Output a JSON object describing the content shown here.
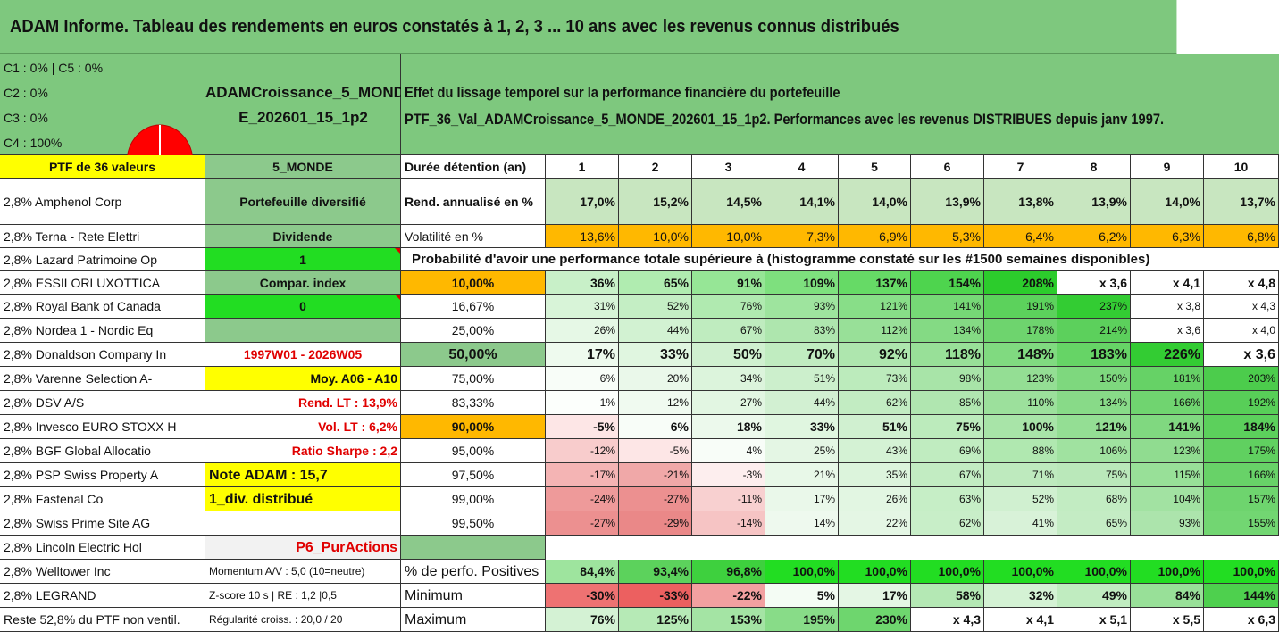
{
  "title": "ADAM Informe. Tableau des rendements en euros constatés à 1, 2, 3 ... 10 ans avec les revenus connus distribués",
  "info_lines": [
    "C1 : 0% | C5 : 0%",
    "C2 : 0%",
    "C3 : 0%",
    "C4 : 100%"
  ],
  "pie": {
    "color": "#ff0000",
    "share_c4": 1.0
  },
  "portfolio_name_lines": [
    "ADAMCroissance_5_MOND",
    "E_202601_15_1p2"
  ],
  "description_lines": [
    "Effet du lissage temporel sur la performance financière du portefeuille",
    "PTF_36_Val_ADAMCroissance_5_MONDE_202601_15_1p2. Performances avec les revenus DISTRIBUES depuis janv 1997."
  ],
  "header_row": {
    "ptf_label": "PTF de 36 valeurs",
    "zone": "5_MONDE",
    "duration_label": "Durée détention (an)",
    "years": [
      "1",
      "2",
      "3",
      "4",
      "5",
      "6",
      "7",
      "8",
      "9",
      "10"
    ]
  },
  "holdings": [
    "2,8% Amphenol Corp",
    "2,8% Terna - Rete Elettri",
    "2,8% Lazard Patrimoine Op",
    "2,8% ESSILORLUXOTTICA",
    "2,8% Royal Bank of Canada",
    "2,8% Nordea 1 - Nordic Eq",
    "2,8% Donaldson Company In",
    "2,8% Varenne Selection A-",
    "2,8% DSV A/S",
    "2,8% Invesco EURO STOXX H",
    "2,8% BGF Global Allocatio",
    "2,8% PSP Swiss Property A",
    "2,8% Fastenal Co",
    "2,8% Swiss Prime Site AG",
    "2,8% Lincoln Electric Hol",
    "2,8% Welltower Inc",
    "2,8% LEGRAND",
    "Reste 52,8% du PTF non ventil."
  ],
  "side_info": [
    "Portefeuille diversifié",
    "Dividende",
    "1",
    "Compar. index",
    "0",
    "",
    "1997W01 - 2026W05",
    "Moy. A06 - A10",
    "Rend. LT : 13,9%",
    "Vol. LT : 6,2%",
    "Ratio Sharpe : 2,2",
    "Note ADAM : 15,7",
    "1_div. distribué",
    "",
    "P6_PurActions",
    "Momentum A/V : 5,0 (10=neutre)",
    "Z-score 10 s | RE : 1,2 |0,5",
    "Régularité croiss. : 20,0 / 20"
  ],
  "rend": {
    "label": "Rend. annualisé en %",
    "values": [
      "17,0%",
      "15,2%",
      "14,5%",
      "14,1%",
      "14,0%",
      "13,9%",
      "13,8%",
      "13,9%",
      "14,0%",
      "13,7%"
    ]
  },
  "vol": {
    "label": "Volatilité en %",
    "values": [
      "13,6%",
      "10,0%",
      "10,0%",
      "7,3%",
      "6,9%",
      "5,3%",
      "6,4%",
      "6,2%",
      "6,3%",
      "6,8%"
    ]
  },
  "prob_title": "Probabilité d'avoir une performance totale supérieure à (histogramme constaté sur les #1500 semaines disponibles)",
  "quantiles": [
    {
      "label": "10,00%",
      "values": [
        "36%",
        "65%",
        "91%",
        "109%",
        "137%",
        "154%",
        "208%",
        "x 3,6",
        "x 4,1",
        "x 4,8"
      ],
      "colors": [
        "#c8f0c8",
        "#b0ecb0",
        "#96e696",
        "#7ee07e",
        "#66da66",
        "#4ed44e",
        "#2ccc2c",
        "#ffffff",
        "#ffffff",
        "#ffffff"
      ]
    },
    {
      "label": "16,67%",
      "values": [
        "31%",
        "52%",
        "76%",
        "93%",
        "121%",
        "141%",
        "191%",
        "237%",
        "x 3,8",
        "x 4,3"
      ],
      "colors": [
        "#d8f4d8",
        "#c4eec4",
        "#b0eab0",
        "#9ee49e",
        "#88de88",
        "#76d876",
        "#5cd25c",
        "#33cc33",
        "#ffffff",
        "#ffffff"
      ]
    },
    {
      "label": "25,00%",
      "values": [
        "26%",
        "44%",
        "67%",
        "83%",
        "112%",
        "134%",
        "178%",
        "214%",
        "x 3,6",
        "x 4,0"
      ],
      "colors": [
        "#e6f8e6",
        "#d2f2d2",
        "#bfecbf",
        "#aee6ae",
        "#98e098",
        "#84da84",
        "#6ed46e",
        "#5cd05c",
        "#ffffff",
        "#ffffff"
      ]
    },
    {
      "label": "50,00%",
      "values": [
        "17%",
        "33%",
        "50%",
        "70%",
        "92%",
        "118%",
        "148%",
        "183%",
        "226%",
        "x 3,6"
      ],
      "colors": [
        "#eefaee",
        "#e0f6e0",
        "#d0f0d0",
        "#c0ecc0",
        "#aee6ae",
        "#98e098",
        "#80da80",
        "#66d466",
        "#33cc33",
        "#ffffff"
      ]
    },
    {
      "label": "75,00%",
      "values": [
        "6%",
        "20%",
        "34%",
        "51%",
        "73%",
        "98%",
        "123%",
        "150%",
        "181%",
        "203%"
      ],
      "colors": [
        "#f8fdf8",
        "#eaf8ea",
        "#dcf4dc",
        "#ccefcc",
        "#bcebbc",
        "#a8e4a8",
        "#94de94",
        "#7ed87e",
        "#66d266",
        "#4ccc4c"
      ]
    },
    {
      "label": "83,33%",
      "values": [
        "1%",
        "12%",
        "27%",
        "44%",
        "62%",
        "85%",
        "110%",
        "134%",
        "166%",
        "192%"
      ],
      "colors": [
        "#fcfffc",
        "#f0faf0",
        "#e2f6e2",
        "#d2f0d2",
        "#c2ecc2",
        "#b0e6b0",
        "#9ce09c",
        "#88da88",
        "#70d470",
        "#58ce58"
      ]
    },
    {
      "label": "90,00%",
      "values": [
        "-5%",
        "6%",
        "18%",
        "33%",
        "51%",
        "75%",
        "100%",
        "121%",
        "141%",
        "184%"
      ],
      "colors": [
        "#fde6e6",
        "#f8fdf8",
        "#ecf9ec",
        "#e0f6e0",
        "#d0f0d0",
        "#bcebbc",
        "#a8e4a8",
        "#94de94",
        "#80d880",
        "#5cd05c"
      ]
    },
    {
      "label": "95,00%",
      "values": [
        "-12%",
        "-5%",
        "4%",
        "25%",
        "43%",
        "69%",
        "88%",
        "106%",
        "123%",
        "175%"
      ],
      "colors": [
        "#f8cccc",
        "#fde6e6",
        "#f8fdf8",
        "#e4f6e4",
        "#d4f2d4",
        "#c0ecc0",
        "#b0e8b0",
        "#a0e2a0",
        "#90dc90",
        "#60d060"
      ]
    },
    {
      "label": "97,50%",
      "values": [
        "-17%",
        "-21%",
        "-3%",
        "21%",
        "35%",
        "67%",
        "71%",
        "75%",
        "115%",
        "166%"
      ],
      "colors": [
        "#f4b4b4",
        "#f0a8a8",
        "#fdeeee",
        "#e8f8e8",
        "#dcf4dc",
        "#c2ecc2",
        "#beeabe",
        "#bae8ba",
        "#98e098",
        "#68d268"
      ]
    },
    {
      "label": "99,00%",
      "values": [
        "-24%",
        "-27%",
        "-11%",
        "17%",
        "26%",
        "63%",
        "52%",
        "68%",
        "104%",
        "157%"
      ],
      "colors": [
        "#ee9a9a",
        "#ec9090",
        "#f8d0d0",
        "#eaf8ea",
        "#e2f6e2",
        "#c6eec6",
        "#d0f0d0",
        "#c2ecc2",
        "#a2e2a2",
        "#6ed46e"
      ]
    },
    {
      "label": "99,50%",
      "values": [
        "-27%",
        "-29%",
        "-14%",
        "14%",
        "22%",
        "62%",
        "41%",
        "65%",
        "93%",
        "155%"
      ],
      "colors": [
        "#ec9090",
        "#ea8888",
        "#f6c4c4",
        "#eef9ee",
        "#e4f6e4",
        "#c8eec8",
        "#d8f2d8",
        "#c4ecc4",
        "#acE4ac",
        "#72d672"
      ]
    }
  ],
  "bottom": [
    {
      "label": "% de perfo. Positives",
      "values": [
        "84,4%",
        "93,4%",
        "96,8%",
        "100,0%",
        "100,0%",
        "100,0%",
        "100,0%",
        "100,0%",
        "100,0%",
        "100,0%"
      ],
      "colors": [
        "#9ee49e",
        "#5cd25c",
        "#3ed03e",
        "#22dd22",
        "#22dd22",
        "#22dd22",
        "#22dd22",
        "#22dd22",
        "#22dd22",
        "#22dd22"
      ]
    },
    {
      "label": "Minimum",
      "values": [
        "-30%",
        "-33%",
        "-22%",
        "5%",
        "17%",
        "58%",
        "32%",
        "49%",
        "84%",
        "144%"
      ],
      "colors": [
        "#ee7272",
        "#ec6060",
        "#f2a0a0",
        "#f4fcf4",
        "#e4f6e4",
        "#b4e8b4",
        "#d4f2d4",
        "#c0ecc0",
        "#98e098",
        "#4ed04e"
      ]
    },
    {
      "label": "Maximum",
      "values": [
        "76%",
        "125%",
        "153%",
        "195%",
        "230%",
        "x 4,3",
        "x 4,1",
        "x 5,1",
        "x 5,5",
        "x 6,3"
      ],
      "colors": [
        "#d4f2d4",
        "#b6eab6",
        "#a4e4a4",
        "#88dc88",
        "#6ed66e",
        "#ffffff",
        "#ffffff",
        "#ffffff",
        "#ffffff",
        "#ffffff"
      ]
    }
  ],
  "colors": {
    "green_bg": "#7ec87e",
    "yellow": "#ffff00",
    "orange": "#ffb800",
    "lime": "#22dd22",
    "red_text": "#e00000",
    "light_green": "#c8e6c0"
  }
}
